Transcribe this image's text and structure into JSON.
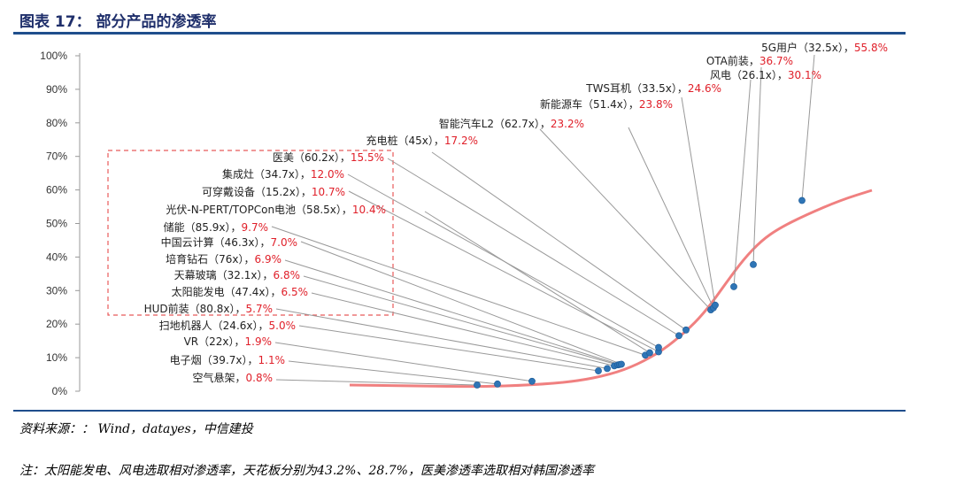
{
  "header": {
    "title": "图表 17：  部分产品的渗透率"
  },
  "footer": {
    "source": "资料来源：：  Wind，datayes，中信建投",
    "note": "注：太阳能发电、风电选取相对渗透率，天花板分别为43.2%、28.7%，医美渗透率选取相对韩国渗透率"
  },
  "colors": {
    "curve": "#f08080",
    "point": "#2e75b6",
    "percent_text": "#e0202a",
    "dashed_box": "#e85a5a",
    "rule": "#1f4e8c"
  },
  "chart_data": {
    "type": "scatter",
    "title": "部分产品的渗透率",
    "ylim": [
      0,
      100
    ],
    "y_ticks": [
      "0%",
      "10%",
      "20%",
      "30%",
      "40%",
      "50%",
      "60%",
      "70%",
      "80%",
      "90%",
      "100%"
    ],
    "grid": false,
    "series": [
      {
        "points": [
          {
            "name": "空气悬架",
            "multiple": "",
            "penetration": 0.8,
            "label": "空气悬架，",
            "pct_label": "0.8%"
          },
          {
            "name": "电子烟",
            "multiple": "39.7x",
            "penetration": 1.1,
            "label": "电子烟（39.7x），",
            "pct_label": "1.1%"
          },
          {
            "name": "VR",
            "multiple": "22x",
            "penetration": 1.9,
            "label": "VR（22x），",
            "pct_label": "1.9%"
          },
          {
            "name": "扫地机器人",
            "multiple": "24.6x",
            "penetration": 5.0,
            "label": "扫地机器人（24.6x），",
            "pct_label": "5.0%"
          },
          {
            "name": "HUD前装",
            "multiple": "80.8x",
            "penetration": 5.7,
            "label": "HUD前装（80.8x），",
            "pct_label": "5.7%"
          },
          {
            "name": "太阳能发电",
            "multiple": "47.4x",
            "penetration": 6.5,
            "label": "太阳能发电（47.4x），",
            "pct_label": "6.5%"
          },
          {
            "name": "天幕玻璃",
            "multiple": "32.1x",
            "penetration": 6.8,
            "label": "天幕玻璃（32.1x），",
            "pct_label": "6.8%"
          },
          {
            "name": "培育钻石",
            "multiple": "76x",
            "penetration": 6.9,
            "label": "培育钻石（76x），",
            "pct_label": "6.9%"
          },
          {
            "name": "中国云计算",
            "multiple": "46.3x",
            "penetration": 7.0,
            "label": "中国云计算（46.3x），",
            "pct_label": "7.0%"
          },
          {
            "name": "储能",
            "multiple": "85.9x",
            "penetration": 9.7,
            "label": "储能（85.9x），",
            "pct_label": "9.7%"
          },
          {
            "name": "光伏-N-PERT/TOPCon电池",
            "multiple": "58.5x",
            "penetration": 10.4,
            "label": "光伏-N-PERT/TOPCon电池（58.5x），",
            "pct_label": "10.4%"
          },
          {
            "name": "可穿戴设备",
            "multiple": "15.2x",
            "penetration": 10.7,
            "label": "可穿戴设备（15.2x），",
            "pct_label": "10.7%"
          },
          {
            "name": "集成灶",
            "multiple": "34.7x",
            "penetration": 12.0,
            "label": "集成灶（34.7x），",
            "pct_label": "12.0%"
          },
          {
            "name": "医美",
            "multiple": "60.2x",
            "penetration": 15.5,
            "label": "医美（60.2x），",
            "pct_label": "15.5%"
          },
          {
            "name": "充电桩",
            "multiple": "45x",
            "penetration": 17.2,
            "label": "充电桩（45x），",
            "pct_label": "17.2%"
          },
          {
            "name": "智能汽车L2",
            "multiple": "62.7x",
            "penetration": 23.2,
            "label": "智能汽车L2（62.7x），",
            "pct_label": "23.2%"
          },
          {
            "name": "新能源车",
            "multiple": "51.4x",
            "penetration": 23.8,
            "label": "新能源车（51.4x），",
            "pct_label": "23.8%"
          },
          {
            "name": "TWS耳机",
            "multiple": "33.5x",
            "penetration": 24.6,
            "label": "TWS耳机（33.5x），",
            "pct_label": "24.6%"
          },
          {
            "name": "风电",
            "multiple": "26.1x",
            "penetration": 30.1,
            "label": "风电（26.1x），",
            "pct_label": "30.1%"
          },
          {
            "name": "OTA前装",
            "multiple": "",
            "penetration": 36.7,
            "label": "OTA前装，",
            "pct_label": "36.7%"
          },
          {
            "name": "5G用户",
            "multiple": "32.5x",
            "penetration": 55.8,
            "label": "5G用户（32.5x），",
            "pct_label": "55.8%"
          }
        ]
      }
    ]
  }
}
